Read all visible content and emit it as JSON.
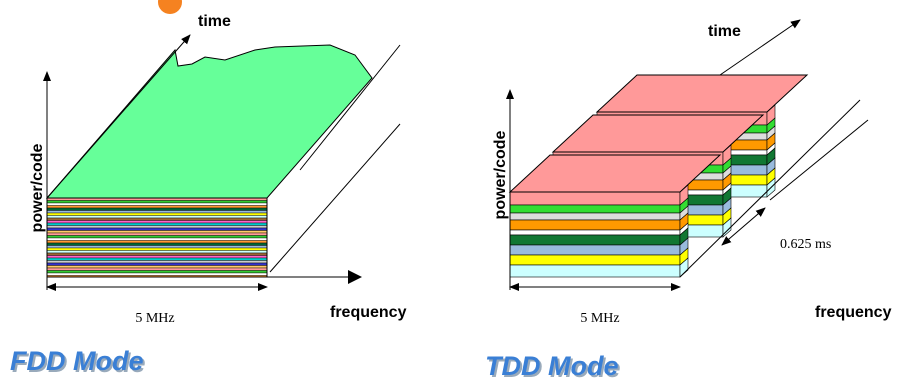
{
  "fdd": {
    "time_label": "time",
    "y_label": "power/code",
    "bandwidth": "5 MHz",
    "x_label": "frequency",
    "title": "FDD Mode"
  },
  "tdd": {
    "time_label": "time",
    "y_label": "power/code",
    "bandwidth": "5 MHz",
    "slot_duration": "0.625 ms",
    "x_label": "frequency",
    "title": "TDD Mode"
  }
}
